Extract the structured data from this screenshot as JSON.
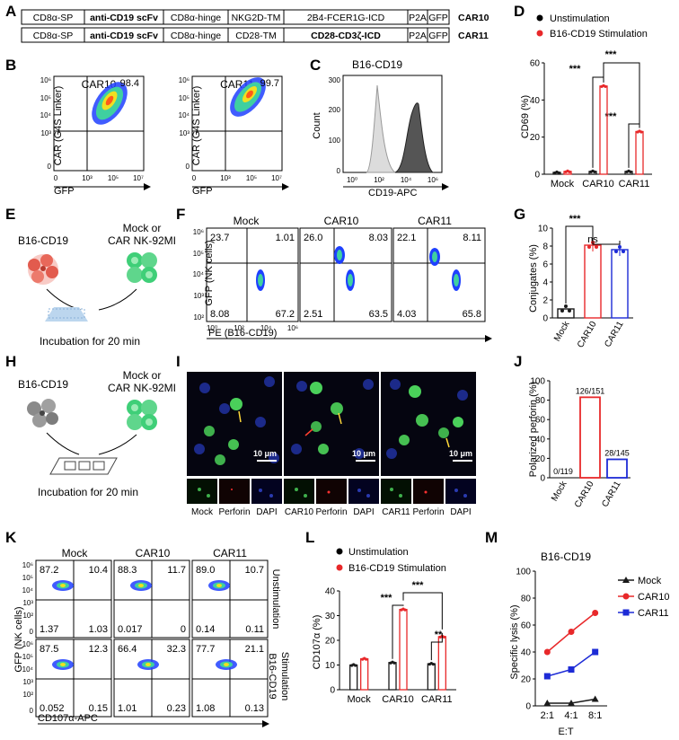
{
  "colors": {
    "red": "#e8282a",
    "blue": "#1d2bd6",
    "black": "#1a1a1a",
    "grey": "#888888"
  },
  "panel_labels": {
    "A": "A",
    "B": "B",
    "C": "C",
    "D": "D",
    "E": "E",
    "F": "F",
    "G": "G",
    "H": "H",
    "I": "I",
    "J": "J",
    "K": "K",
    "L": "L",
    "M": "M"
  },
  "panelA": {
    "car10": {
      "segments": [
        "CD8α-SP",
        "anti-CD19 scFv",
        "CD8α-hinge",
        "NKG2D-TM",
        "2B4-FCER1G-ICD",
        "P2A",
        "GFP"
      ],
      "name": "CAR10"
    },
    "car11": {
      "segments": [
        "CD8α-SP",
        "anti-CD19 scFv",
        "CD8α-hinge",
        "CD28-TM",
        "CD28-CD3ζ-ICD",
        "P2A",
        "GFP"
      ],
      "name": "CAR11"
    }
  },
  "panelB": {
    "plots": [
      {
        "title": "CAR10",
        "value": "98.4"
      },
      {
        "title": "CAR11",
        "value": "99.7"
      }
    ],
    "ylabel": "CAR (G4S Linker)",
    "xlabel": "GFP",
    "yticks": [
      "10⁶",
      "10⁵",
      "10⁴",
      "10³",
      "0"
    ],
    "xticks": [
      "0",
      "10³",
      "10⁵",
      "10⁷"
    ]
  },
  "panelC": {
    "title": "B16-CD19",
    "ylabel": "Count",
    "xlabel": "CD19-APC",
    "yticks": [
      "300",
      "200",
      "100",
      "0"
    ],
    "xticks": [
      "10⁰",
      "10²",
      "10⁴",
      "10⁶"
    ]
  },
  "panelD": {
    "legend": [
      "Unstimulation",
      "B16-CD19 Stimulation"
    ],
    "ylabel": "CD69 (%)",
    "sig": [
      "***",
      "***",
      "***"
    ]
  },
  "panelE": {
    "left": "B16-CD19",
    "right_l1": "Mock or",
    "right_l2": "CAR NK-92MI",
    "caption": "Incubation for 20 min"
  },
  "panelF": {
    "plots": [
      {
        "title": "Mock",
        "q": [
          "23.7",
          "1.01",
          "8.08",
          "67.2"
        ]
      },
      {
        "title": "CAR10",
        "q": [
          "26.0",
          "8.03",
          "2.51",
          "63.5"
        ]
      },
      {
        "title": "CAR11",
        "q": [
          "22.1",
          "8.11",
          "4.03",
          "65.8"
        ]
      }
    ],
    "ylabel": "GFP (NK cells)",
    "xlabel": "PE (B16-CD19)",
    "yticks": [
      "10⁶",
      "10⁵",
      "10⁴",
      "10³",
      "10²"
    ],
    "xticks": [
      "10⁰",
      "10²",
      "10⁴",
      "10⁶"
    ]
  },
  "panelG": {
    "ylabel": "Conjugates (%)",
    "sig": [
      "***",
      "ns"
    ]
  },
  "panelH": {
    "left": "B16-CD19",
    "right_l1": "Mock or",
    "right_l2": "CAR NK-92MI",
    "caption": "Incubation for 20 min"
  },
  "panelI": {
    "scale": "10 μm",
    "labels": [
      "Mock",
      "Perforin",
      "DAPI",
      "CAR10",
      "Perforin",
      "DAPI",
      "CAR11",
      "Perforin",
      "DAPI"
    ]
  },
  "panelJ": {
    "ylabel": "Polarized perforin (%)",
    "labels": [
      "0/119",
      "126/151",
      "28/145"
    ]
  },
  "panelK": {
    "cols": [
      "Mock",
      "CAR10",
      "CAR11"
    ],
    "rows": [
      "Unstimulation",
      "B16-CD19 Stimulation"
    ],
    "row1_l1": "B16-CD19",
    "row1_l2": "Stimulation",
    "quads": [
      [
        [
          "87.2",
          "10.4",
          "1.37",
          "1.03"
        ],
        [
          "88.3",
          "11.7",
          "0.017",
          "0"
        ],
        [
          "89.0",
          "10.7",
          "0.14",
          "0.11"
        ]
      ],
      [
        [
          "87.5",
          "12.3",
          "0.052",
          "0.15"
        ],
        [
          "66.4",
          "32.3",
          "1.01",
          "0.23"
        ],
        [
          "77.7",
          "21.1",
          "1.08",
          "0.13"
        ]
      ]
    ],
    "ylabel": "GFP (NK cells)",
    "xlabel": "CD107α-APC",
    "yticks": [
      "10⁶",
      "10⁵",
      "10⁴",
      "10³",
      "10²",
      "0"
    ]
  },
  "panelL": {
    "legend": [
      "Unstimulation",
      "B16-CD19 Stimulation"
    ],
    "ylabel": "CD107α (%)",
    "sig": [
      "***",
      "***",
      "**"
    ]
  },
  "panelM": {
    "title": "B16-CD19",
    "ylabel": "Specific lysis (%)",
    "xlabel": "E:T",
    "legend": [
      "Mock",
      "CAR10",
      "CAR11"
    ]
  },
  "chart_data": [
    {
      "panel": "D",
      "type": "bar",
      "ylabel": "CD69 (%)",
      "ylim": [
        0,
        60
      ],
      "yticks": [
        "0",
        "20",
        "40",
        "60"
      ],
      "categories": [
        "Mock",
        "CAR10",
        "CAR11"
      ],
      "series": [
        {
          "name": "Unstimulation",
          "values": [
            1,
            1.5,
            1.5
          ]
        },
        {
          "name": "B16-CD19 Stimulation",
          "values": [
            1.5,
            47.5,
            23
          ]
        }
      ]
    },
    {
      "panel": "G",
      "type": "bar",
      "ylabel": "Conjugates (%)",
      "ylim": [
        0,
        10
      ],
      "yticks": [
        "0",
        "2",
        "4",
        "6",
        "8",
        "10"
      ],
      "categories": [
        "Mock",
        "CAR10",
        "CAR11"
      ],
      "values": [
        1.0,
        8.1,
        7.6
      ]
    },
    {
      "panel": "J",
      "type": "bar",
      "ylabel": "Polarized perforin (%)",
      "ylim": [
        0,
        100
      ],
      "yticks": [
        "0",
        "20",
        "40",
        "60",
        "80",
        "100"
      ],
      "categories": [
        "Mock",
        "CAR10",
        "CAR11"
      ],
      "values": [
        0,
        83,
        19
      ]
    },
    {
      "panel": "L",
      "type": "bar",
      "ylabel": "CD107α (%)",
      "ylim": [
        0,
        40
      ],
      "yticks": [
        "0",
        "10",
        "20",
        "30",
        "40"
      ],
      "categories": [
        "Mock",
        "CAR10",
        "CAR11"
      ],
      "series": [
        {
          "name": "Unstimulation",
          "values": [
            10,
            11,
            10.5
          ]
        },
        {
          "name": "B16-CD19 Stimulation",
          "values": [
            12.5,
            32.5,
            21.5
          ]
        }
      ]
    },
    {
      "panel": "M",
      "type": "line",
      "title": "B16-CD19",
      "ylabel": "Specific lysis (%)",
      "xlabel": "E:T",
      "ylim": [
        0,
        100
      ],
      "yticks": [
        "0",
        "20",
        "40",
        "60",
        "80",
        "100"
      ],
      "categories": [
        "2:1",
        "4:1",
        "8:1"
      ],
      "series": [
        {
          "name": "Mock",
          "values": [
            2,
            2,
            5
          ]
        },
        {
          "name": "CAR10",
          "values": [
            40,
            55,
            69
          ]
        },
        {
          "name": "CAR11",
          "values": [
            22,
            27,
            40
          ]
        }
      ]
    }
  ]
}
